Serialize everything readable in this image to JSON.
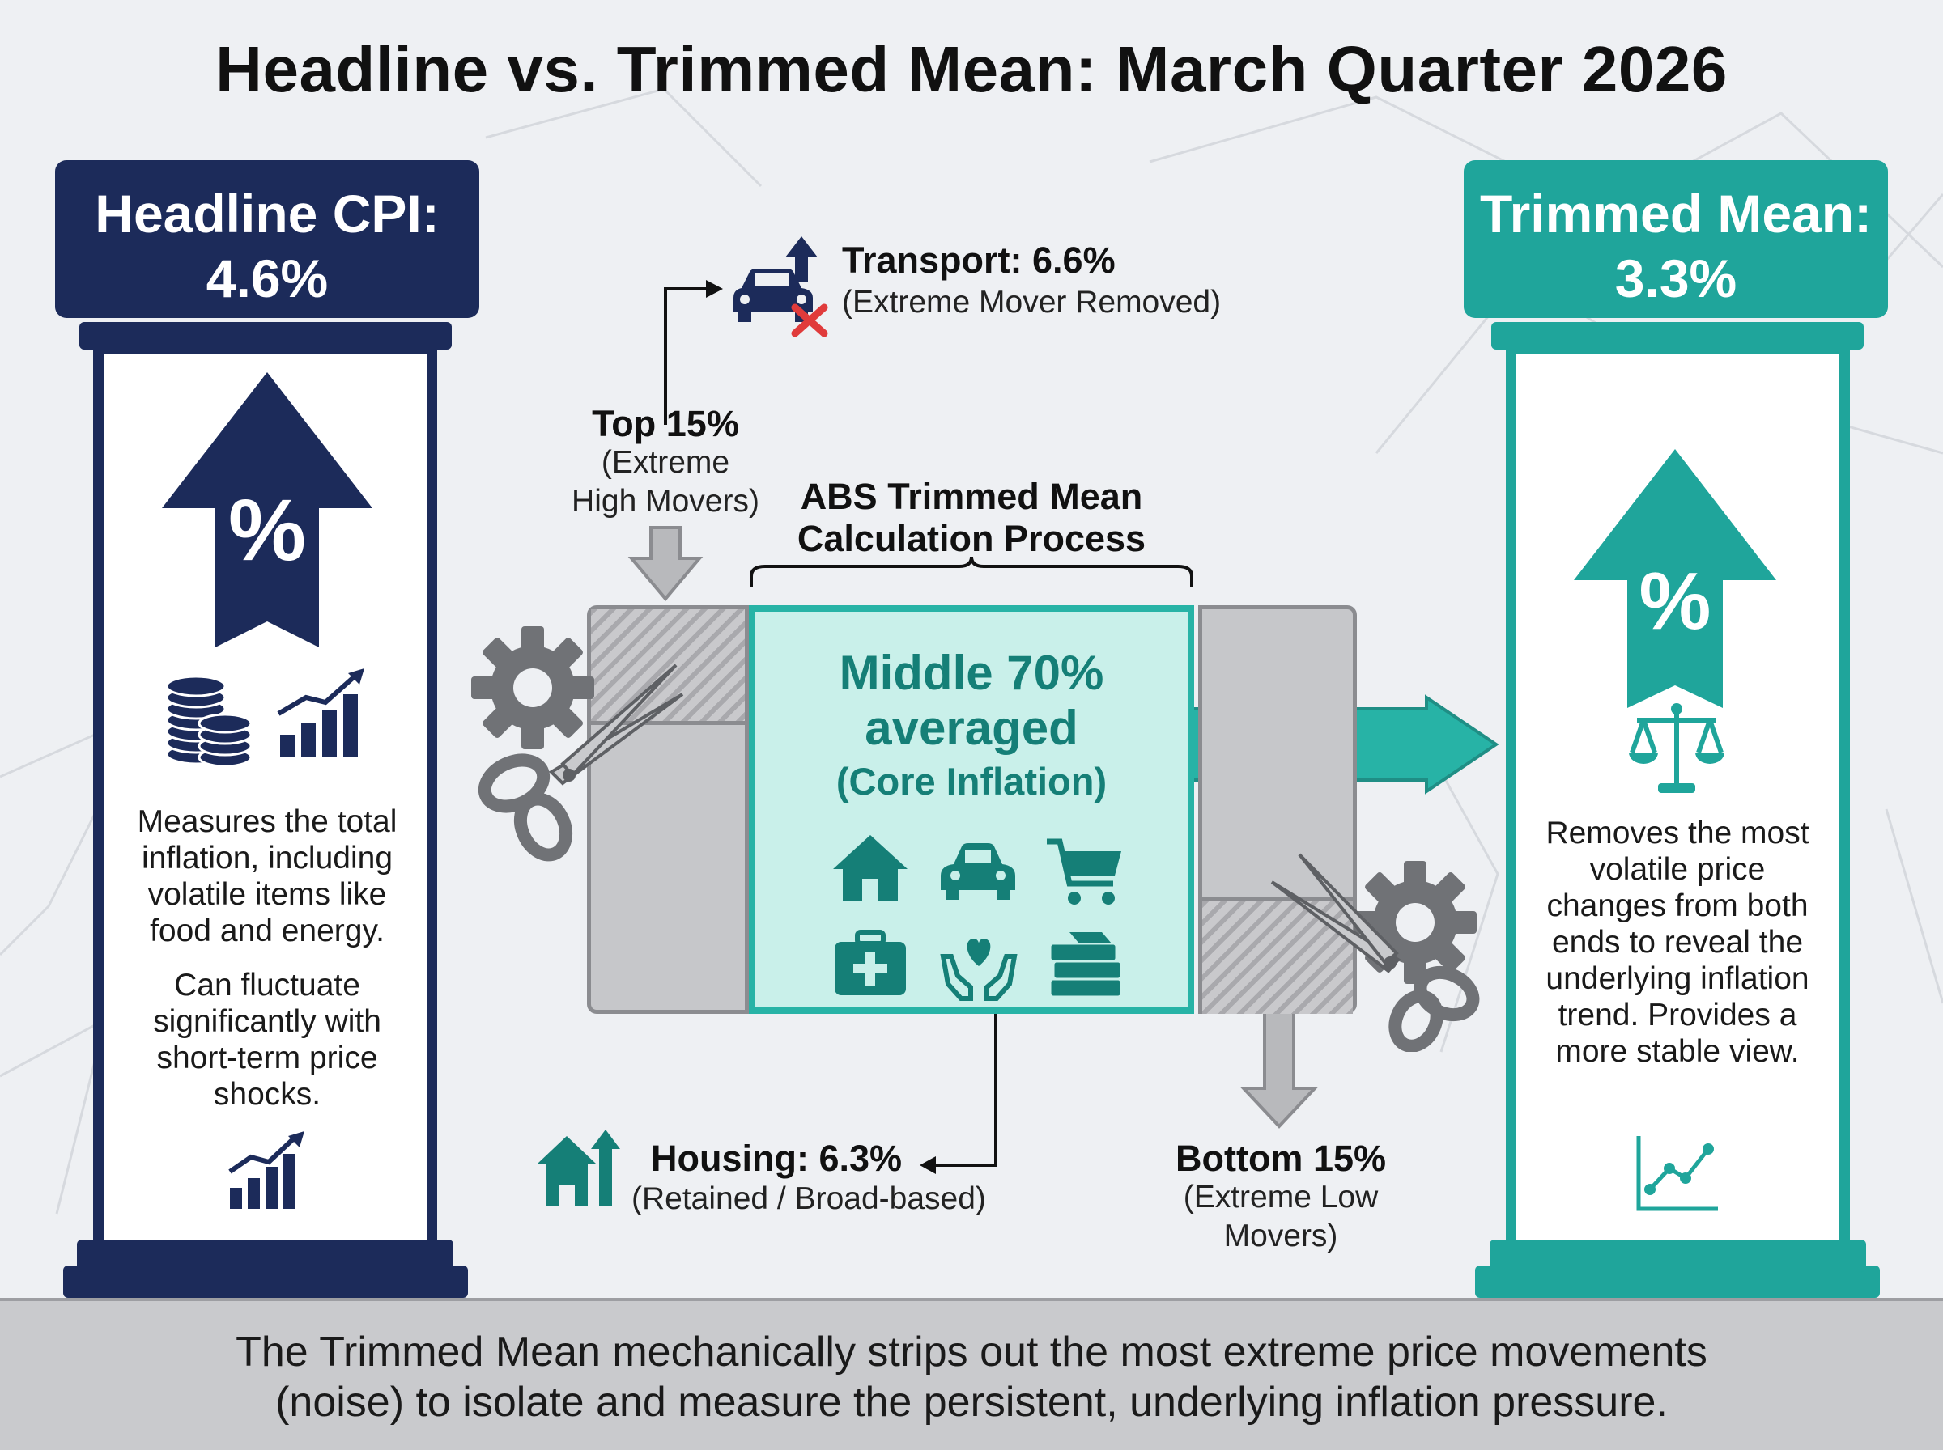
{
  "title": "Headline vs. Trimmed Mean: March Quarter 2026",
  "headline": {
    "label": "Headline CPI:",
    "value": "4.6%",
    "arrow_symbol": "%",
    "text1": "Measures the total inflation, including volatile items like food and energy.",
    "text2": "Can fluctuate significantly with short-term price shocks."
  },
  "trimmed": {
    "label": "Trimmed Mean:",
    "value": "3.3%",
    "arrow_symbol": "%",
    "text1": "Removes the most volatile price changes from both ends to reveal the underlying inflation trend. Provides a more stable view."
  },
  "process": {
    "title_line1": "ABS Trimmed Mean",
    "title_line2": "Calculation Process",
    "top": {
      "label": "Top 15%",
      "sub_line1": "(Extreme",
      "sub_line2": "High Movers)"
    },
    "bottom": {
      "label": "Bottom 15%",
      "sub_line1": "(Extreme Low",
      "sub_line2": "Movers)"
    },
    "middle": {
      "line1": "Middle 70%",
      "line2": "averaged",
      "sub": "(Core Inflation)"
    },
    "transport": {
      "label": "Transport: 6.6%",
      "sub": "(Extreme Mover Removed)"
    },
    "housing": {
      "label": "Housing: 6.3%",
      "sub": "(Retained / Broad-based)"
    }
  },
  "footer": {
    "line1": "The Trimmed Mean mechanically strips out the most extreme price movements",
    "line2": "(noise) to isolate and measure the persistent, underlying inflation pressure."
  },
  "colors": {
    "navy": "#1c2b5a",
    "teal": "#1fa59b",
    "teal_dark": "#157f77",
    "gray": "#8b8c90"
  },
  "icons": [
    "coins-icon",
    "bar-chart-up-icon",
    "car-icon",
    "x-mark-icon",
    "gear-icon",
    "scissors-icon",
    "house-icon",
    "shopping-cart-icon",
    "medical-kit-icon",
    "heart-hands-icon",
    "books-icon",
    "scales-icon",
    "line-chart-icon"
  ]
}
